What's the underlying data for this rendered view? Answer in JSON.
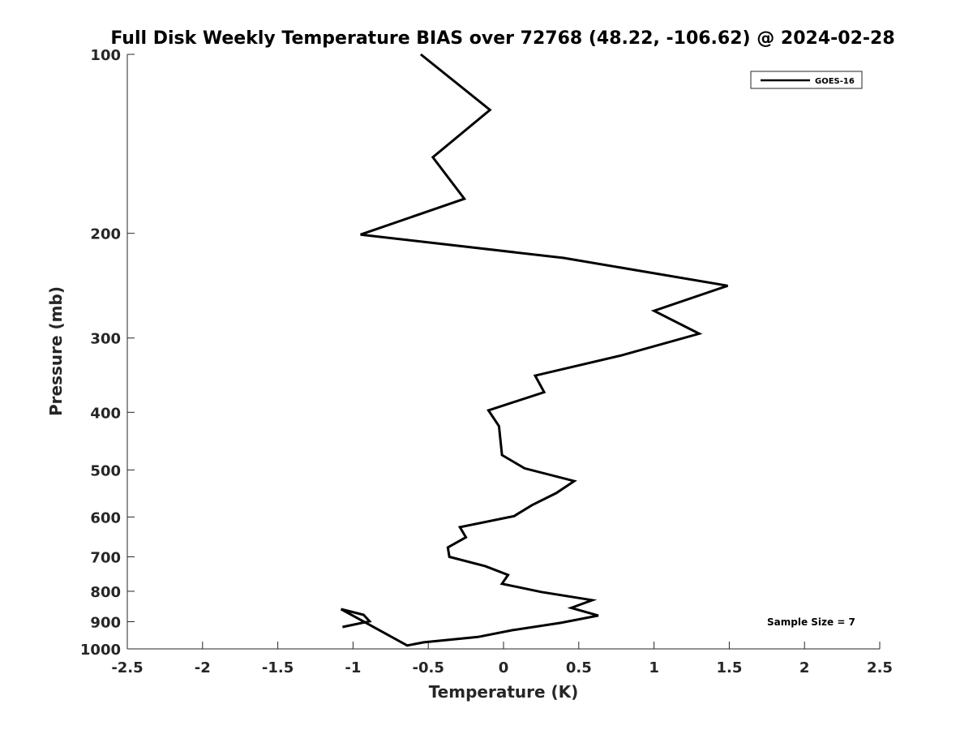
{
  "chart_data": {
    "type": "line",
    "title": "Full Disk Weekly Temperature BIAS over 72768 (48.22, -106.62) @ 2024-02-28",
    "xlabel": "Temperature (K)",
    "ylabel": "Pressure (mb)",
    "xlim": [
      -2.5,
      2.5
    ],
    "ylim": [
      1000,
      100
    ],
    "yscale": "log",
    "y_reversed": true,
    "grid": false,
    "legend_position": "top-right",
    "xticks": [
      -2.5,
      -2,
      -1.5,
      -1,
      -0.5,
      0,
      0.5,
      1,
      1.5,
      2,
      2.5
    ],
    "xtick_labels": [
      "-2.5",
      "-2",
      "-1.5",
      "-1",
      "-0.5",
      "0",
      "0.5",
      "1",
      "1.5",
      "2",
      "2.5"
    ],
    "yticks": [
      100,
      200,
      300,
      400,
      500,
      600,
      700,
      800,
      900,
      1000
    ],
    "ytick_labels": [
      "100",
      "200",
      "300",
      "400",
      "500",
      "600",
      "700",
      "800",
      "900",
      "1000"
    ],
    "series": [
      {
        "name": "GOES-16",
        "color": "#000000",
        "x": [
          -0.55,
          -0.09,
          -0.47,
          -0.26,
          -0.95,
          0.4,
          1.49,
          1.0,
          1.3,
          0.78,
          0.21,
          0.27,
          -0.1,
          -0.03,
          -0.02,
          -0.01,
          0.14,
          0.47,
          0.35,
          0.19,
          0.07,
          -0.29,
          -0.25,
          -0.37,
          -0.36,
          -0.12,
          0.03,
          -0.01,
          0.25,
          0.59,
          0.45,
          0.63,
          0.38,
          0.06,
          -0.17,
          -0.53,
          -0.64,
          -1.08,
          -0.93,
          -0.89,
          -1.07
        ],
        "y": [
          100,
          124,
          149,
          175,
          201,
          220,
          245,
          270,
          295,
          321,
          347,
          370,
          397,
          422,
          447,
          472,
          497,
          522,
          547,
          573,
          598,
          624,
          649,
          675,
          700,
          726,
          751,
          777,
          802,
          828,
          853,
          879,
          904,
          930,
          955,
          975,
          987,
          1000,
          1000,
          1000,
          1000
        ]
      }
    ],
    "annotations": [
      {
        "text": "Sample Size = 7",
        "position": "bottom-right"
      }
    ]
  }
}
